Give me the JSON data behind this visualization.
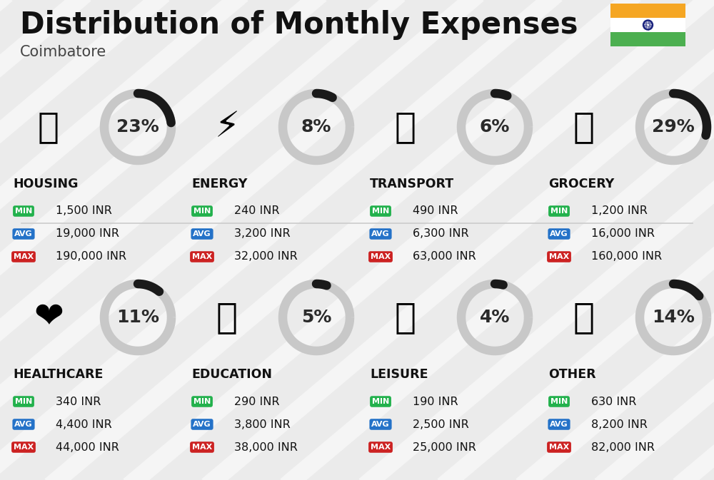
{
  "title": "Distribution of Monthly Expenses",
  "subtitle": "Coimbatore",
  "background_color": "#ebebeb",
  "categories": [
    {
      "name": "HOUSING",
      "percent": 23,
      "min_val": "1,500 INR",
      "avg_val": "19,000 INR",
      "max_val": "190,000 INR",
      "emoji": "🏙",
      "row": 0,
      "col": 0
    },
    {
      "name": "ENERGY",
      "percent": 8,
      "min_val": "240 INR",
      "avg_val": "3,200 INR",
      "max_val": "32,000 INR",
      "emoji": "⚡",
      "row": 0,
      "col": 1
    },
    {
      "name": "TRANSPORT",
      "percent": 6,
      "min_val": "490 INR",
      "avg_val": "6,300 INR",
      "max_val": "63,000 INR",
      "emoji": "🚌",
      "row": 0,
      "col": 2
    },
    {
      "name": "GROCERY",
      "percent": 29,
      "min_val": "1,200 INR",
      "avg_val": "16,000 INR",
      "max_val": "160,000 INR",
      "emoji": "🛒",
      "row": 0,
      "col": 3
    },
    {
      "name": "HEALTHCARE",
      "percent": 11,
      "min_val": "340 INR",
      "avg_val": "4,400 INR",
      "max_val": "44,000 INR",
      "emoji": "❤",
      "row": 1,
      "col": 0
    },
    {
      "name": "EDUCATION",
      "percent": 5,
      "min_val": "290 INR",
      "avg_val": "3,800 INR",
      "max_val": "38,000 INR",
      "emoji": "🎓",
      "row": 1,
      "col": 1
    },
    {
      "name": "LEISURE",
      "percent": 4,
      "min_val": "190 INR",
      "avg_val": "2,500 INR",
      "max_val": "25,000 INR",
      "emoji": "🛍",
      "row": 1,
      "col": 2
    },
    {
      "name": "OTHER",
      "percent": 14,
      "min_val": "630 INR",
      "avg_val": "8,200 INR",
      "max_val": "82,000 INR",
      "emoji": "👜",
      "row": 1,
      "col": 3
    }
  ],
  "color_min": "#22b14c",
  "color_avg": "#2472c8",
  "color_max": "#cc2222",
  "color_arc_filled": "#1a1a1a",
  "color_arc_empty": "#c8c8c8",
  "stripe_color": "#ffffff",
  "stripe_alpha": 0.5,
  "stripe_lw": 18,
  "divider_color": "#cccccc",
  "title_fontsize": 30,
  "subtitle_fontsize": 15,
  "category_fontsize": 12.5,
  "value_fontsize": 11.5,
  "percent_fontsize": 18,
  "badge_fontsize": 8,
  "emoji_fontsize": 36
}
